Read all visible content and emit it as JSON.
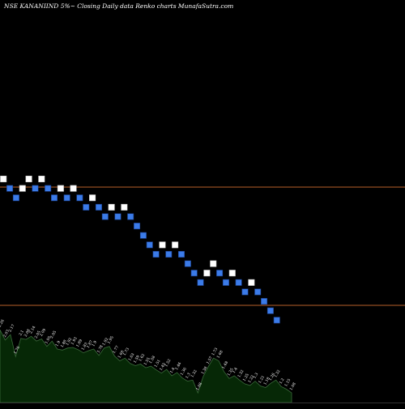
{
  "header": {
    "title": "NSE KANANIIND 5%~  Closing Daily data  Renko  charts MunafaSutra.com"
  },
  "colors": {
    "background": "#000000",
    "up_brick": "#ffffff",
    "down_brick": "#3b7be8",
    "brick_border": "#1b3f8c",
    "reference_line": "#b8602a",
    "volume_fill": "#062806",
    "volume_line": "#3a6b3a",
    "volume_label": "#ffffff"
  },
  "chart_data": {
    "type": "renko",
    "title": "NSE KANANIIND 5%~  Closing Daily data  Renko  charts MunafaSutra.com",
    "xlabel": "",
    "ylabel": "",
    "brick_size_note": "5%",
    "reference_lines": [
      {
        "name": "upper",
        "level": 38.6
      },
      {
        "name": "lower",
        "level": 29.8
      }
    ],
    "bricks": [
      {
        "dir": "up",
        "level": 39.2
      },
      {
        "dir": "down",
        "level": 38.5
      },
      {
        "dir": "down",
        "level": 37.8
      },
      {
        "dir": "up",
        "level": 38.5
      },
      {
        "dir": "up",
        "level": 39.2
      },
      {
        "dir": "down",
        "level": 38.5
      },
      {
        "dir": "up",
        "level": 39.2
      },
      {
        "dir": "down",
        "level": 38.5
      },
      {
        "dir": "down",
        "level": 37.8
      },
      {
        "dir": "up",
        "level": 38.5
      },
      {
        "dir": "down",
        "level": 37.8
      },
      {
        "dir": "up",
        "level": 38.5
      },
      {
        "dir": "down",
        "level": 37.8
      },
      {
        "dir": "down",
        "level": 37.1
      },
      {
        "dir": "up",
        "level": 37.8
      },
      {
        "dir": "down",
        "level": 37.1
      },
      {
        "dir": "down",
        "level": 36.4
      },
      {
        "dir": "up",
        "level": 37.1
      },
      {
        "dir": "down",
        "level": 36.4
      },
      {
        "dir": "up",
        "level": 37.1
      },
      {
        "dir": "down",
        "level": 36.4
      },
      {
        "dir": "down",
        "level": 35.7
      },
      {
        "dir": "down",
        "level": 35.0
      },
      {
        "dir": "down",
        "level": 34.3
      },
      {
        "dir": "down",
        "level": 33.6
      },
      {
        "dir": "up",
        "level": 34.3
      },
      {
        "dir": "down",
        "level": 33.6
      },
      {
        "dir": "up",
        "level": 34.3
      },
      {
        "dir": "down",
        "level": 33.6
      },
      {
        "dir": "down",
        "level": 32.9
      },
      {
        "dir": "down",
        "level": 32.2
      },
      {
        "dir": "down",
        "level": 31.5
      },
      {
        "dir": "up",
        "level": 32.2
      },
      {
        "dir": "up",
        "level": 32.9
      },
      {
        "dir": "down",
        "level": 32.2
      },
      {
        "dir": "down",
        "level": 31.5
      },
      {
        "dir": "up",
        "level": 32.2
      },
      {
        "dir": "down",
        "level": 31.5
      },
      {
        "dir": "down",
        "level": 30.8
      },
      {
        "dir": "up",
        "level": 31.5
      },
      {
        "dir": "down",
        "level": 30.8
      },
      {
        "dir": "down",
        "level": 30.1
      },
      {
        "dir": "down",
        "level": 29.4
      },
      {
        "dir": "down",
        "level": 28.7
      }
    ],
    "volume": [
      {
        "label": "2.26",
        "value": 2.26
      },
      {
        "label": "2.07",
        "value": 2.07
      },
      {
        "label": "2.17",
        "value": 2.17
      },
      {
        "label": "1.76",
        "value": 1.76
      },
      {
        "label": "2.1",
        "value": 2.1
      },
      {
        "label": "2.08",
        "value": 2.08
      },
      {
        "label": "2.14",
        "value": 2.14
      },
      {
        "label": "2.05",
        "value": 2.05
      },
      {
        "label": "2.09",
        "value": 2.09
      },
      {
        "label": "1.95",
        "value": 1.95
      },
      {
        "label": "2.05",
        "value": 2.05
      },
      {
        "label": "1.9",
        "value": 1.9
      },
      {
        "label": "1.88",
        "value": 1.88
      },
      {
        "label": "1.92",
        "value": 1.92
      },
      {
        "label": "1.93",
        "value": 1.93
      },
      {
        "label": "1.89",
        "value": 1.89
      },
      {
        "label": "1.83",
        "value": 1.83
      },
      {
        "label": "1.87",
        "value": 1.87
      },
      {
        "label": "1.9",
        "value": 1.9
      },
      {
        "label": "1.78",
        "value": 1.78
      },
      {
        "label": "1.92",
        "value": 1.92
      },
      {
        "label": "1.95",
        "value": 1.95
      },
      {
        "label": "1.77",
        "value": 1.77
      },
      {
        "label": "1.68",
        "value": 1.68
      },
      {
        "label": "1.73",
        "value": 1.73
      },
      {
        "label": "1.63",
        "value": 1.63
      },
      {
        "label": "1.59",
        "value": 1.59
      },
      {
        "label": "1.62",
        "value": 1.62
      },
      {
        "label": "1.55",
        "value": 1.55
      },
      {
        "label": "1.58",
        "value": 1.58
      },
      {
        "label": "1.51",
        "value": 1.51
      },
      {
        "label": "1.45",
        "value": 1.45
      },
      {
        "label": "1.52",
        "value": 1.52
      },
      {
        "label": "1.4",
        "value": 1.4
      },
      {
        "label": "1.46",
        "value": 1.46
      },
      {
        "label": "1.36",
        "value": 1.36
      },
      {
        "label": "1.3",
        "value": 1.3
      },
      {
        "label": "1.32",
        "value": 1.32
      },
      {
        "label": "1.08",
        "value": 1.08
      },
      {
        "label": "1.38",
        "value": 1.38
      },
      {
        "label": "1.57",
        "value": 1.57
      },
      {
        "label": "1.73",
        "value": 1.73
      },
      {
        "label": "1.68",
        "value": 1.68
      },
      {
        "label": "1.48",
        "value": 1.48
      },
      {
        "label": "1.35",
        "value": 1.35
      },
      {
        "label": "1.4",
        "value": 1.4
      },
      {
        "label": "1.32",
        "value": 1.32
      },
      {
        "label": "1.25",
        "value": 1.25
      },
      {
        "label": "1.22",
        "value": 1.22
      },
      {
        "label": "1.3",
        "value": 1.3
      },
      {
        "label": "1.21",
        "value": 1.21
      },
      {
        "label": "1.18",
        "value": 1.18
      },
      {
        "label": "1.26",
        "value": 1.26
      },
      {
        "label": "1.32",
        "value": 1.32
      },
      {
        "label": "1.2",
        "value": 1.2
      },
      {
        "label": "1.15",
        "value": 1.15
      },
      {
        "label": "1.08",
        "value": 1.08
      }
    ]
  }
}
